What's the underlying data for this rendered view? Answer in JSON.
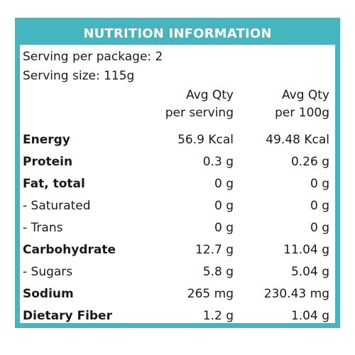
{
  "title": "NUTRITION INFORMATION",
  "serving_per_package": "Serving per package: 2",
  "serving_size": "Serving size: 115g",
  "columns": {
    "per_serving": [
      "Avg Qty",
      "per serving"
    ],
    "per_100g": [
      "Avg Qty",
      "per 100g"
    ]
  },
  "rows": [
    {
      "label": "Energy",
      "bold": true,
      "per_serving": "56.9 Kcal",
      "per_100g": "49.48 Kcal"
    },
    {
      "label": "Protein",
      "bold": true,
      "per_serving": "0.3 g",
      "per_100g": "0.26 g"
    },
    {
      "label": "Fat, total",
      "bold": true,
      "per_serving": "0 g",
      "per_100g": "0 g"
    },
    {
      "label": "- Saturated",
      "bold": false,
      "per_serving": "0 g",
      "per_100g": "0 g"
    },
    {
      "label": "- Trans",
      "bold": false,
      "per_serving": "0 g",
      "per_100g": "0 g"
    },
    {
      "label": "Carbohydrate",
      "bold": true,
      "per_serving": "12.7 g",
      "per_100g": "11.04 g"
    },
    {
      "label": "- Sugars",
      "bold": false,
      "per_serving": "5.8 g",
      "per_100g": "5.04 g"
    },
    {
      "label": "Sodium",
      "bold": true,
      "per_serving": "265 mg",
      "per_100g": "230.43 mg"
    },
    {
      "label": "Dietary Fiber",
      "bold": true,
      "per_serving": "1.2 g",
      "per_100g": "1.04 g"
    }
  ],
  "colors": {
    "border": "#45b6bf",
    "title_text": "#ffffff",
    "body_text": "#1a1a1a"
  }
}
